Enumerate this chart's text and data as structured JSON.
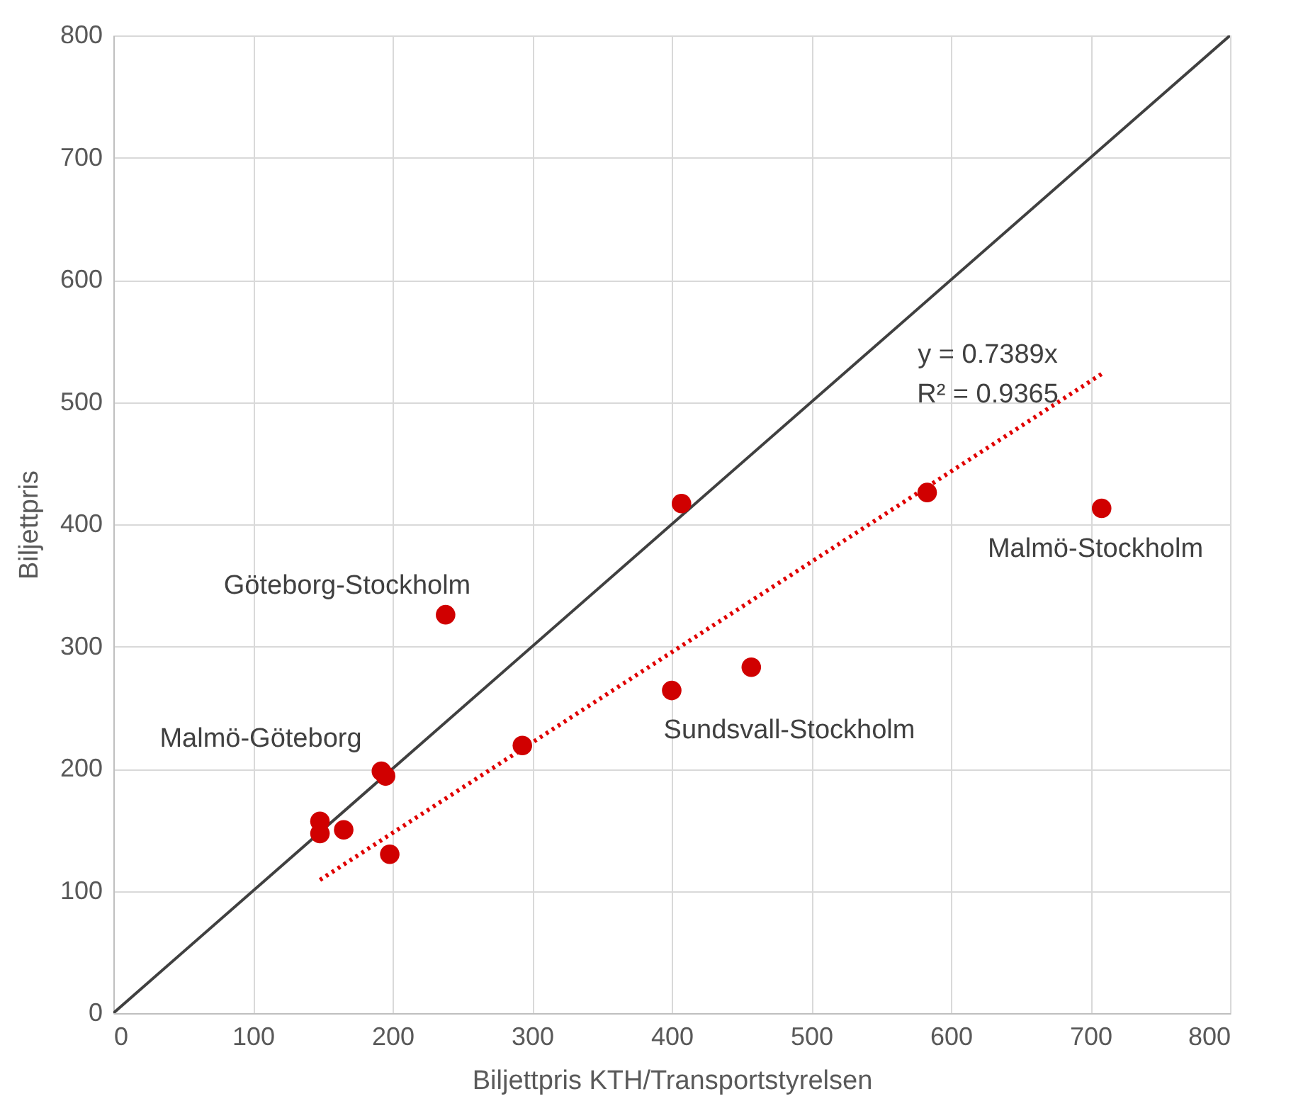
{
  "chart_data": {
    "type": "scatter",
    "xlabel": "Biljettpris KTH/Transportstyrelsen",
    "ylabel": "Biljettpris",
    "xlim": [
      0,
      800
    ],
    "ylim": [
      0,
      800
    ],
    "xticks": [
      0,
      100,
      200,
      300,
      400,
      500,
      600,
      700,
      800
    ],
    "yticks": [
      0,
      100,
      200,
      300,
      400,
      500,
      600,
      700,
      800
    ],
    "grid": true,
    "marker": "circle",
    "series": [
      {
        "type": "line",
        "color": "#404040",
        "line_style": "solid",
        "marker": "none",
        "x": [
          0,
          800
        ],
        "values": [
          0,
          800
        ]
      },
      {
        "type": "line",
        "color": "#e00000",
        "line_style": "dotted",
        "marker": "none",
        "x": [
          148,
          708
        ],
        "values": [
          109,
          523
        ]
      },
      {
        "color": "#d00000",
        "x": [
          148,
          148,
          165,
          192,
          195,
          198,
          238,
          293,
          400,
          407,
          457,
          583,
          708
        ],
        "values": [
          147,
          157,
          150,
          198,
          194,
          130,
          326,
          219,
          264,
          417,
          283,
          426,
          413
        ]
      }
    ],
    "annotations": [
      "Göteborg-Stockholm",
      "Malmö-Göteborg",
      "Sundsvall-Stockholm",
      "Malmö-Stockholm",
      "y = 0.7389x",
      "R² = 0.9365"
    ]
  }
}
